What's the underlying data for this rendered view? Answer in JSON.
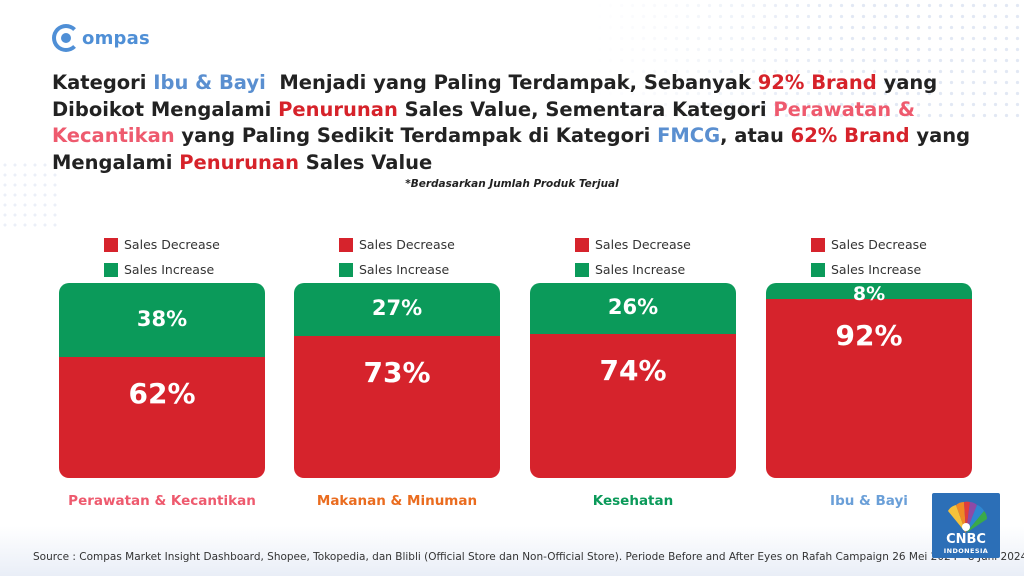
{
  "brand": {
    "logo_text": "ompas"
  },
  "headline": {
    "parts": [
      {
        "text": "Kategori ",
        "style": "plain"
      },
      {
        "text": "Ibu & Bayi",
        "style": "blue"
      },
      {
        "text": "  Menjadi yang Paling Terdampak, Sebanyak ",
        "style": "plain"
      },
      {
        "text": "92% Brand",
        "style": "red"
      },
      {
        "text": " yang Diboikot Mengalami ",
        "style": "plain"
      },
      {
        "text": "Penurunan",
        "style": "red"
      },
      {
        "text": " Sales Value, Sementara Kategori ",
        "style": "plain"
      },
      {
        "text": "Perawatan & Kecantikan",
        "style": "pink"
      },
      {
        "text": " yang Paling Sedikit Terdampak di Kategori ",
        "style": "plain"
      },
      {
        "text": "FMCG",
        "style": "blue"
      },
      {
        "text": ", atau ",
        "style": "plain"
      },
      {
        "text": "62% Brand",
        "style": "red"
      },
      {
        "text": " yang Mengalami ",
        "style": "plain"
      },
      {
        "text": "Penurunan",
        "style": "red"
      },
      {
        "text": " Sales Value",
        "style": "plain"
      }
    ]
  },
  "note": "*Berdasarkan Jumlah Produk Terjual",
  "colors": {
    "decrease": "#d6232c",
    "increase": "#0b9a5a",
    "cat_pink": "#ee5a6e",
    "cat_orange": "#ea6c1f",
    "cat_green": "#0b9a5a",
    "cat_blue": "#6a9fd8"
  },
  "chart_data": {
    "type": "bar",
    "stacked": true,
    "categories": [
      "Perawatan & Kecantikan",
      "Makanan & Minuman",
      "Kesehatan",
      "Ibu & Bayi"
    ],
    "category_colors": [
      "#ee5a6e",
      "#ea6c1f",
      "#0b9a5a",
      "#6a9fd8"
    ],
    "series": [
      {
        "name": "Sales Decrease",
        "color": "#d6232c",
        "values": [
          62,
          73,
          74,
          92
        ],
        "labels": [
          "62%",
          "73%",
          "74%",
          "92%"
        ]
      },
      {
        "name": "Sales Increase",
        "color": "#0b9a5a",
        "values": [
          38,
          27,
          26,
          8
        ],
        "labels": [
          "38%",
          "27%",
          "26%",
          "8%"
        ]
      }
    ],
    "unit": "%",
    "ylim": [
      0,
      100
    ],
    "legend_position": "top",
    "grid": false
  },
  "source": "Source : Compas Market Insight Dashboard, Shopee, Tokopedia, dan Blibli (Official Store dan Non-Official Store). Periode Before and After Eyes on Rafah Campaign 26 Mei 2024 - 8 Juni 2024",
  "badge": {
    "name": "CNBC",
    "sub": "INDONESIA"
  }
}
